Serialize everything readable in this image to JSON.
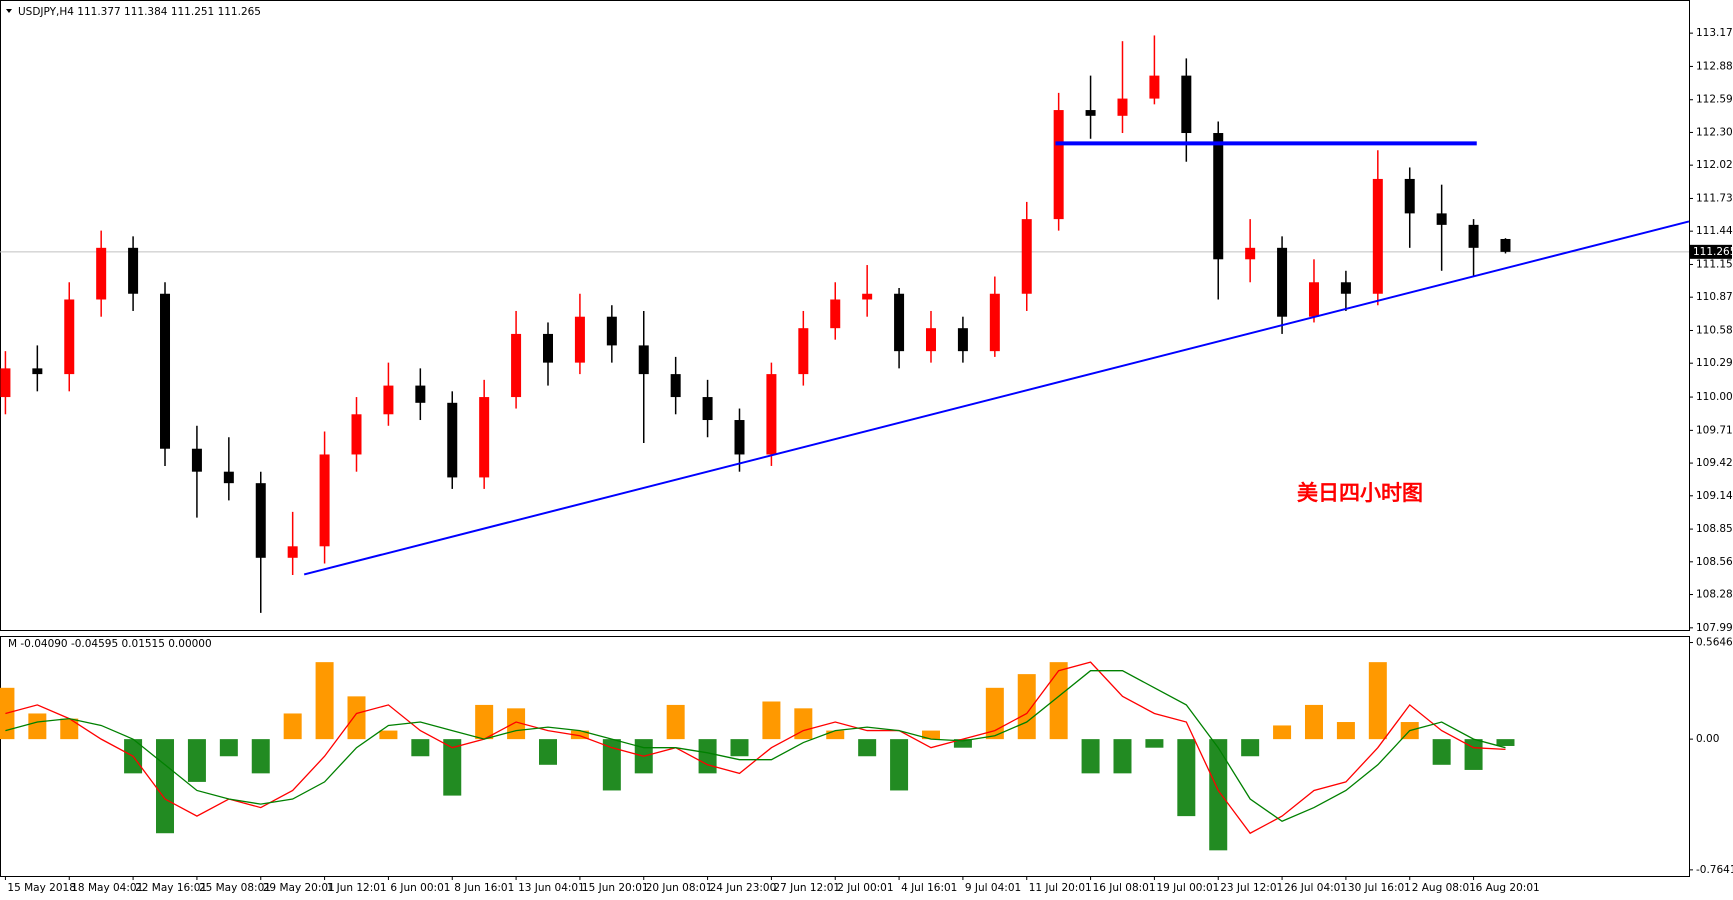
{
  "chart_data": [
    {
      "type": "candlestick",
      "title": "USDJPY,H4  111.377 111.384 111.251 111.265",
      "annotation": "美日四小时图",
      "categories": [
        "15 May 2018",
        null,
        "18 May 04:01",
        null,
        "22 May 16:01",
        null,
        "25 May 08:01",
        null,
        "29 May 20:01",
        null,
        "1 Jun 12:01",
        null,
        "6 Jun 00:01",
        null,
        "8 Jun 16:01",
        null,
        "13 Jun 04:01",
        null,
        "15 Jun 20:01",
        null,
        "20 Jun 08:01",
        null,
        "24 Jun 23:00",
        null,
        "27 Jun 12:01",
        null,
        "2 Jul 00:01",
        null,
        "4 Jul 16:01",
        null,
        "9 Jul 04:01",
        null,
        "11 Jul 20:01",
        null,
        "16 Jul 08:01",
        null,
        "19 Jul 00:01",
        null,
        "23 Jul 12:01",
        null,
        "26 Jul 04:01",
        null,
        "30 Jul 16:01",
        null,
        "2 Aug 08:01",
        null,
        "6 Aug 20:01",
        null
      ],
      "open": [
        110.0,
        110.25,
        110.2,
        110.85,
        111.3,
        110.9,
        109.55,
        109.35,
        109.25,
        108.6,
        108.7,
        109.5,
        109.85,
        110.1,
        109.95,
        109.3,
        110.0,
        110.55,
        110.3,
        110.7,
        110.45,
        110.2,
        110.0,
        109.8,
        109.5,
        110.2,
        110.6,
        110.85,
        110.9,
        110.4,
        110.6,
        110.4,
        110.9,
        111.55,
        112.5,
        112.45,
        112.6,
        112.8,
        112.3,
        111.2,
        111.3,
        110.7,
        111.0,
        110.9,
        111.9,
        111.6,
        111.5,
        111.377
      ],
      "high": [
        110.4,
        110.45,
        111.0,
        111.45,
        111.4,
        111.0,
        109.75,
        109.65,
        109.35,
        109.0,
        109.7,
        110.0,
        110.3,
        110.25,
        110.05,
        110.15,
        110.75,
        110.65,
        110.9,
        110.8,
        110.75,
        110.35,
        110.15,
        109.9,
        110.3,
        110.75,
        111.0,
        111.15,
        110.95,
        110.75,
        110.7,
        111.05,
        111.7,
        112.65,
        112.8,
        113.1,
        113.15,
        112.95,
        112.4,
        111.55,
        111.4,
        111.2,
        111.1,
        112.15,
        112.0,
        111.85,
        111.55,
        111.384
      ],
      "low": [
        109.85,
        110.05,
        110.05,
        110.7,
        110.75,
        109.4,
        108.95,
        109.1,
        108.12,
        108.45,
        108.55,
        109.35,
        109.75,
        109.8,
        109.2,
        109.2,
        109.9,
        110.1,
        110.2,
        110.3,
        109.6,
        109.85,
        109.65,
        109.35,
        109.4,
        110.1,
        110.5,
        110.7,
        110.25,
        110.3,
        110.3,
        110.35,
        110.75,
        111.45,
        112.25,
        112.3,
        112.55,
        112.05,
        110.85,
        111.0,
        110.55,
        110.65,
        110.75,
        110.8,
        111.3,
        111.1,
        111.05,
        111.251
      ],
      "close": [
        110.25,
        110.2,
        110.85,
        111.3,
        110.9,
        109.55,
        109.35,
        109.25,
        108.6,
        108.7,
        109.5,
        109.85,
        110.1,
        109.95,
        109.3,
        110.0,
        110.55,
        110.3,
        110.7,
        110.45,
        110.2,
        110.0,
        109.8,
        109.5,
        110.2,
        110.6,
        110.85,
        110.9,
        110.4,
        110.6,
        110.4,
        110.9,
        111.55,
        112.5,
        112.45,
        112.6,
        112.8,
        112.3,
        111.2,
        111.3,
        110.7,
        111.0,
        110.9,
        111.9,
        111.6,
        111.5,
        111.3,
        111.265
      ],
      "up_color": "#ff0000",
      "down_color": "#000000",
      "last_price": {
        "value": 111.265,
        "label": "111.265"
      },
      "lines": [
        {
          "color": "#0000ff",
          "width": 4,
          "x": [
            32.9,
            46.1
          ],
          "y": [
            112.21,
            112.21
          ]
        },
        {
          "color": "#0000ff",
          "width": 2,
          "x": [
            9.36,
            52.75
          ],
          "y": [
            108.455,
            111.53
          ]
        }
      ],
      "xlim": [
        -0.17,
        52.75
      ],
      "ylim": [
        107.971,
        113.45
      ],
      "yticks": [
        {
          "value": 107.99,
          "label": "107.990"
        },
        {
          "value": 108.28,
          "label": "108.280"
        },
        {
          "value": 108.565,
          "label": "108.565"
        },
        {
          "value": 108.85,
          "label": "108.850"
        },
        {
          "value": 109.14,
          "label": "109.140"
        },
        {
          "value": 109.425,
          "label": "109.425"
        },
        {
          "value": 109.71,
          "label": "109.710"
        },
        {
          "value": 110.0,
          "label": "110.000"
        },
        {
          "value": 110.295,
          "label": "110.295"
        },
        {
          "value": 110.58,
          "label": "110.580"
        },
        {
          "value": 110.87,
          "label": "110.870"
        },
        {
          "value": 111.155,
          "label": "111.155"
        },
        {
          "value": 111.445,
          "label": "111.445"
        },
        {
          "value": 111.73,
          "label": "111.730"
        },
        {
          "value": 112.02,
          "label": "112.020"
        },
        {
          "value": 112.305,
          "label": "112.305"
        },
        {
          "value": 112.59,
          "label": "112.590"
        },
        {
          "value": 112.88,
          "label": "112.880"
        },
        {
          "value": 113.17,
          "label": "113.170"
        }
      ]
    },
    {
      "type": "histogram",
      "title": "M -0.04090 -0.04595 0.01515 0.00000",
      "values": [
        0.3,
        0.15,
        0.12,
        0.0,
        -0.2,
        -0.55,
        -0.25,
        -0.1,
        -0.2,
        0.15,
        0.45,
        0.25,
        0.05,
        -0.1,
        -0.33,
        0.2,
        0.18,
        -0.15,
        0.05,
        -0.3,
        -0.2,
        0.2,
        -0.2,
        -0.1,
        0.22,
        0.18,
        0.05,
        -0.1,
        -0.3,
        0.05,
        -0.05,
        0.3,
        0.38,
        0.45,
        -0.2,
        -0.2,
        -0.05,
        -0.45,
        -0.65,
        -0.1,
        0.08,
        0.2,
        0.1,
        0.45,
        0.1,
        -0.15,
        -0.18,
        -0.04
      ],
      "positive_color": "#ff9900",
      "negative_color": "#228b22",
      "lines": [
        {
          "color": "#ff0000",
          "values": [
            0.15,
            0.2,
            0.12,
            0.0,
            -0.1,
            -0.35,
            -0.45,
            -0.35,
            -0.4,
            -0.3,
            -0.1,
            0.15,
            0.2,
            0.05,
            -0.05,
            0.0,
            0.1,
            0.05,
            0.02,
            -0.05,
            -0.1,
            -0.05,
            -0.15,
            -0.2,
            -0.05,
            0.05,
            0.1,
            0.05,
            0.05,
            -0.05,
            0.0,
            0.05,
            0.15,
            0.4,
            0.45,
            0.25,
            0.15,
            0.1,
            -0.3,
            -0.55,
            -0.45,
            -0.3,
            -0.25,
            -0.05,
            0.2,
            0.05,
            -0.05,
            -0.06
          ]
        },
        {
          "color": "#008000",
          "values": [
            0.05,
            0.1,
            0.12,
            0.08,
            0.0,
            -0.15,
            -0.3,
            -0.35,
            -0.38,
            -0.35,
            -0.25,
            -0.05,
            0.08,
            0.1,
            0.05,
            0.0,
            0.05,
            0.07,
            0.05,
            0.0,
            -0.05,
            -0.05,
            -0.08,
            -0.12,
            -0.12,
            -0.02,
            0.05,
            0.07,
            0.05,
            0.0,
            -0.01,
            0.02,
            0.1,
            0.25,
            0.4,
            0.4,
            0.3,
            0.2,
            -0.05,
            -0.35,
            -0.48,
            -0.4,
            -0.3,
            -0.15,
            0.05,
            0.1,
            0.0,
            -0.05
          ]
        }
      ],
      "ylim": [
        -0.8,
        0.597
      ],
      "yticks": [
        0.56465,
        {
          "value": 0,
          "label": "0.00"
        },
        -0.76414
      ]
    }
  ]
}
